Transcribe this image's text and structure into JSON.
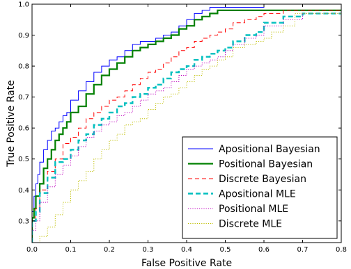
{
  "chart_data": {
    "type": "line",
    "xlabel": "False Positive Rate",
    "ylabel": "True Positive Rate",
    "xlim": [
      0.0,
      0.8
    ],
    "ylim": [
      0.23,
      1.0
    ],
    "xticks": [
      "0.0",
      "0.1",
      "0.2",
      "0.3",
      "0.4",
      "0.5",
      "0.6",
      "0.7",
      "0.8"
    ],
    "yticks": [
      "0.3",
      "0.4",
      "0.5",
      "0.6",
      "0.7",
      "0.8",
      "0.9",
      "1.0"
    ],
    "grid": false,
    "legend_position": "bottom-right",
    "series": [
      {
        "name": "Apositional Bayesian",
        "color": "#0000ff",
        "style": "solid",
        "x": [
          0.0,
          0.005,
          0.01,
          0.015,
          0.02,
          0.03,
          0.04,
          0.05,
          0.06,
          0.07,
          0.08,
          0.09,
          0.1,
          0.12,
          0.14,
          0.16,
          0.18,
          0.2,
          0.22,
          0.24,
          0.26,
          0.28,
          0.3,
          0.32,
          0.34,
          0.36,
          0.38,
          0.4,
          0.42,
          0.44,
          0.46,
          0.48,
          0.5,
          0.55,
          0.6,
          0.65,
          0.8
        ],
        "y": [
          0.23,
          0.33,
          0.38,
          0.42,
          0.45,
          0.49,
          0.53,
          0.56,
          0.59,
          0.6,
          0.62,
          0.64,
          0.65,
          0.69,
          0.72,
          0.75,
          0.78,
          0.8,
          0.82,
          0.83,
          0.85,
          0.87,
          0.88,
          0.88,
          0.89,
          0.9,
          0.91,
          0.93,
          0.95,
          0.97,
          0.98,
          0.99,
          0.99,
          0.99,
          0.99,
          1.0,
          1.0
        ]
      },
      {
        "name": "Positional Bayesian",
        "color": "#008000",
        "style": "solid-thick",
        "x": [
          0.0,
          0.005,
          0.01,
          0.02,
          0.03,
          0.04,
          0.05,
          0.06,
          0.07,
          0.08,
          0.09,
          0.1,
          0.12,
          0.14,
          0.16,
          0.18,
          0.2,
          0.22,
          0.24,
          0.26,
          0.28,
          0.3,
          0.32,
          0.34,
          0.36,
          0.38,
          0.4,
          0.42,
          0.44,
          0.46,
          0.48,
          0.5,
          0.55,
          0.6,
          0.65,
          0.7,
          0.8
        ],
        "y": [
          0.23,
          0.31,
          0.34,
          0.38,
          0.42,
          0.47,
          0.5,
          0.53,
          0.56,
          0.58,
          0.6,
          0.62,
          0.65,
          0.67,
          0.71,
          0.74,
          0.77,
          0.79,
          0.81,
          0.83,
          0.85,
          0.86,
          0.87,
          0.88,
          0.89,
          0.9,
          0.92,
          0.93,
          0.95,
          0.96,
          0.97,
          0.98,
          0.98,
          0.98,
          0.98,
          0.98,
          0.98
        ]
      },
      {
        "name": "Discrete Bayesian",
        "color": "#ff0000",
        "style": "dashed",
        "x": [
          0.0,
          0.01,
          0.02,
          0.04,
          0.06,
          0.08,
          0.1,
          0.12,
          0.14,
          0.16,
          0.18,
          0.2,
          0.22,
          0.24,
          0.26,
          0.28,
          0.3,
          0.32,
          0.34,
          0.36,
          0.38,
          0.4,
          0.42,
          0.44,
          0.46,
          0.48,
          0.5,
          0.52,
          0.55,
          0.58,
          0.6,
          0.65,
          0.7,
          0.8
        ],
        "y": [
          0.23,
          0.3,
          0.34,
          0.4,
          0.46,
          0.5,
          0.55,
          0.57,
          0.6,
          0.63,
          0.65,
          0.67,
          0.69,
          0.7,
          0.72,
          0.74,
          0.76,
          0.78,
          0.79,
          0.81,
          0.83,
          0.85,
          0.86,
          0.88,
          0.89,
          0.9,
          0.91,
          0.92,
          0.94,
          0.95,
          0.96,
          0.97,
          0.98,
          0.98
        ]
      },
      {
        "name": "Apositional MLE",
        "color": "#00bfbf",
        "style": "dashed-thick",
        "x": [
          0.0,
          0.01,
          0.02,
          0.04,
          0.06,
          0.08,
          0.1,
          0.12,
          0.14,
          0.16,
          0.18,
          0.2,
          0.22,
          0.24,
          0.26,
          0.28,
          0.3,
          0.32,
          0.34,
          0.36,
          0.38,
          0.4,
          0.42,
          0.44,
          0.46,
          0.48,
          0.5,
          0.52,
          0.55,
          0.58,
          0.6,
          0.65,
          0.7,
          0.8
        ],
        "y": [
          0.23,
          0.3,
          0.33,
          0.39,
          0.44,
          0.49,
          0.5,
          0.53,
          0.56,
          0.58,
          0.61,
          0.63,
          0.65,
          0.67,
          0.68,
          0.7,
          0.71,
          0.73,
          0.74,
          0.76,
          0.78,
          0.79,
          0.8,
          0.82,
          0.83,
          0.84,
          0.85,
          0.86,
          0.88,
          0.9,
          0.91,
          0.94,
          0.96,
          0.97
        ]
      },
      {
        "name": "Positional MLE",
        "color": "#bf00bf",
        "style": "dotted",
        "x": [
          0.0,
          0.01,
          0.02,
          0.04,
          0.06,
          0.08,
          0.1,
          0.12,
          0.14,
          0.16,
          0.18,
          0.2,
          0.22,
          0.24,
          0.26,
          0.28,
          0.3,
          0.32,
          0.34,
          0.36,
          0.38,
          0.4,
          0.42,
          0.44,
          0.46,
          0.48,
          0.5,
          0.52,
          0.55,
          0.58,
          0.6,
          0.65,
          0.7,
          0.8
        ],
        "y": [
          0.23,
          0.27,
          0.3,
          0.36,
          0.41,
          0.45,
          0.48,
          0.51,
          0.54,
          0.57,
          0.59,
          0.61,
          0.62,
          0.64,
          0.65,
          0.67,
          0.69,
          0.71,
          0.72,
          0.73,
          0.75,
          0.77,
          0.79,
          0.8,
          0.81,
          0.82,
          0.83,
          0.85,
          0.87,
          0.89,
          0.9,
          0.93,
          0.95,
          0.97
        ]
      },
      {
        "name": "Discrete MLE",
        "color": "#bfbf00",
        "style": "dotted",
        "x": [
          0.0,
          0.02,
          0.04,
          0.06,
          0.08,
          0.1,
          0.12,
          0.14,
          0.16,
          0.18,
          0.2,
          0.22,
          0.24,
          0.26,
          0.28,
          0.3,
          0.32,
          0.34,
          0.36,
          0.38,
          0.4,
          0.42,
          0.44,
          0.46,
          0.48,
          0.5,
          0.52,
          0.55,
          0.58,
          0.6,
          0.62,
          0.65,
          0.68,
          0.7,
          0.8
        ],
        "y": [
          0.23,
          0.23,
          0.25,
          0.28,
          0.32,
          0.36,
          0.4,
          0.43,
          0.46,
          0.5,
          0.53,
          0.56,
          0.58,
          0.61,
          0.62,
          0.63,
          0.66,
          0.68,
          0.7,
          0.71,
          0.73,
          0.75,
          0.77,
          0.79,
          0.8,
          0.82,
          0.83,
          0.86,
          0.87,
          0.88,
          0.89,
          0.91,
          0.93,
          0.97,
          0.97
        ]
      }
    ]
  }
}
